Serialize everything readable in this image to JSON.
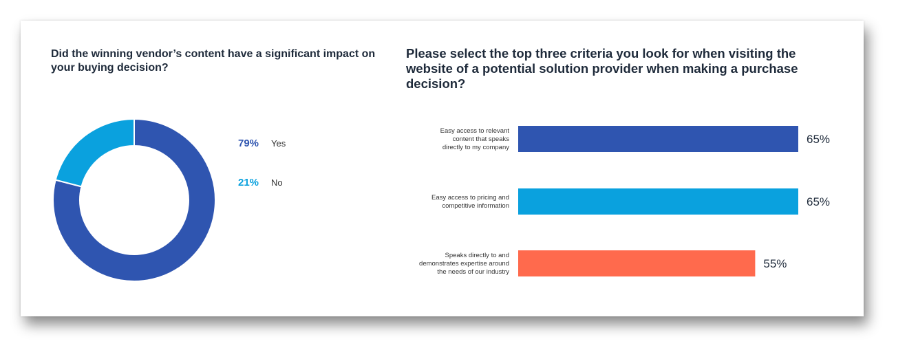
{
  "chart_data": [
    {
      "type": "pie",
      "title": "Did the winning vendor’s content have a significant impact on your buying decision?",
      "categories": [
        "Yes",
        "No"
      ],
      "values": [
        79,
        21
      ],
      "value_labels": [
        "79%",
        "21%"
      ],
      "colors": [
        "#2f55b0",
        "#0aa1de"
      ],
      "donut": true,
      "legend": "right"
    },
    {
      "type": "bar",
      "orientation": "horizontal",
      "title": "Please select the top three criteria you look for when visiting the website of a potential solution provider when making a purchase decision?",
      "categories": [
        [
          "Easy access to relevant",
          "content that speaks",
          "directly to my company"
        ],
        [
          "Easy access to pricing and",
          "competitive information"
        ],
        [
          "Speaks directly to and",
          "demonstrates expertise around",
          "the needs of our industry"
        ]
      ],
      "values": [
        65,
        65,
        55
      ],
      "value_labels": [
        "65%",
        "65%",
        "55%"
      ],
      "colors": [
        "#2f55b0",
        "#0aa1de",
        "#ff6a4d"
      ],
      "xlim": [
        0,
        100
      ],
      "grid": false
    }
  ]
}
